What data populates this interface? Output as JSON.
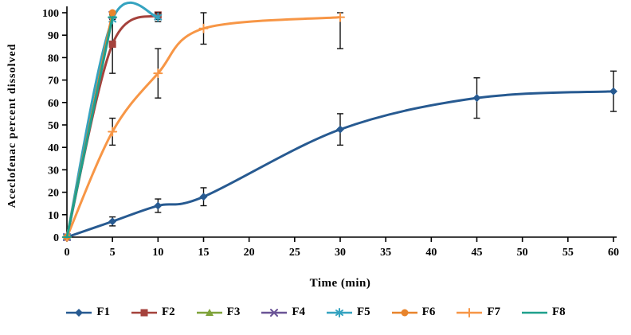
{
  "chart_data": {
    "type": "line",
    "title": "",
    "xlabel": "Time (min)",
    "ylabel": "Aceclofenac percent dissolved",
    "xlim": [
      0,
      60
    ],
    "ylim": [
      0,
      100
    ],
    "xticks": [
      0,
      5,
      10,
      15,
      20,
      25,
      30,
      35,
      40,
      45,
      50,
      55,
      60
    ],
    "yticks": [
      0,
      10,
      20,
      30,
      40,
      50,
      60,
      70,
      80,
      90,
      100
    ],
    "grid": false,
    "legend_position": "bottom",
    "error_bar_color": "#111111",
    "series": [
      {
        "name": "F1",
        "color": "#275A91",
        "marker": "diamond",
        "x": [
          0,
          5,
          10,
          15,
          30,
          45,
          60
        ],
        "y": [
          0,
          7,
          14,
          18,
          48,
          62,
          65
        ],
        "yerr": [
          0,
          2,
          3,
          4,
          7,
          9,
          9
        ]
      },
      {
        "name": "F2",
        "color": "#A5423C",
        "marker": "square",
        "x": [
          0,
          5,
          10
        ],
        "y": [
          0,
          86,
          99
        ],
        "yerr": [
          0,
          13,
          2
        ]
      },
      {
        "name": "F3",
        "color": "#7FA33A",
        "marker": "triangle",
        "x": [
          0,
          5
        ],
        "y": [
          0,
          99
        ],
        "yerr": [
          0,
          2
        ]
      },
      {
        "name": "F4",
        "color": "#6A5396",
        "marker": "x",
        "x": [
          0,
          5
        ],
        "y": [
          0,
          99
        ],
        "yerr": [
          0,
          0
        ]
      },
      {
        "name": "F5",
        "color": "#35A3C0",
        "marker": "asterisk",
        "x": [
          0,
          5,
          10
        ],
        "y": [
          0,
          97,
          98
        ],
        "yerr": [
          0,
          0,
          2
        ]
      },
      {
        "name": "F6",
        "color": "#E8842C",
        "marker": "circle",
        "x": [
          0,
          5
        ],
        "y": [
          0,
          100
        ],
        "yerr": [
          0,
          0
        ]
      },
      {
        "name": "F7",
        "color": "#F79646",
        "marker": "plus",
        "x": [
          0,
          5,
          10,
          15,
          30
        ],
        "y": [
          0,
          47,
          73,
          93,
          98
        ],
        "yerr": [
          0,
          6,
          11,
          7,
          14
        ]
      },
      {
        "name": "F8",
        "color": "#1FA08C",
        "marker": "dash",
        "x": [
          0,
          5
        ],
        "y": [
          0,
          98
        ],
        "yerr": [
          0,
          0
        ]
      }
    ]
  }
}
